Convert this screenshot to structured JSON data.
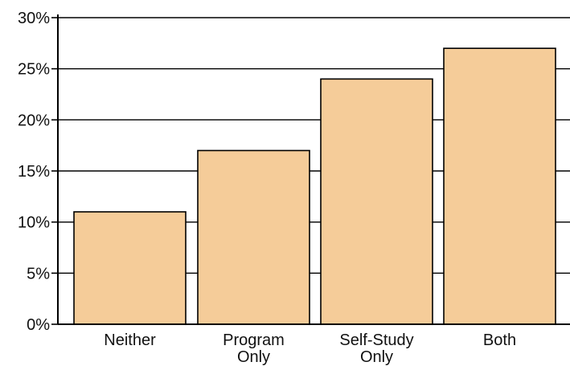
{
  "chart_data": {
    "type": "bar",
    "title": "",
    "xlabel": "",
    "ylabel": "",
    "categories": [
      [
        "Neither"
      ],
      [
        "Program",
        "Only"
      ],
      [
        "Self-Study",
        "Only"
      ],
      [
        "Both"
      ]
    ],
    "values": [
      11,
      17,
      24,
      27
    ],
    "ylim": [
      0,
      30
    ],
    "y_ticks": [
      0,
      5,
      10,
      15,
      20,
      25,
      30
    ],
    "y_tick_labels": [
      "0%",
      "5%",
      "10%",
      "15%",
      "20%",
      "25%",
      "30%"
    ],
    "grid": true,
    "bar_color": "#f5cc99",
    "bar_edge_color": "#000000",
    "grid_color": "#000000"
  }
}
